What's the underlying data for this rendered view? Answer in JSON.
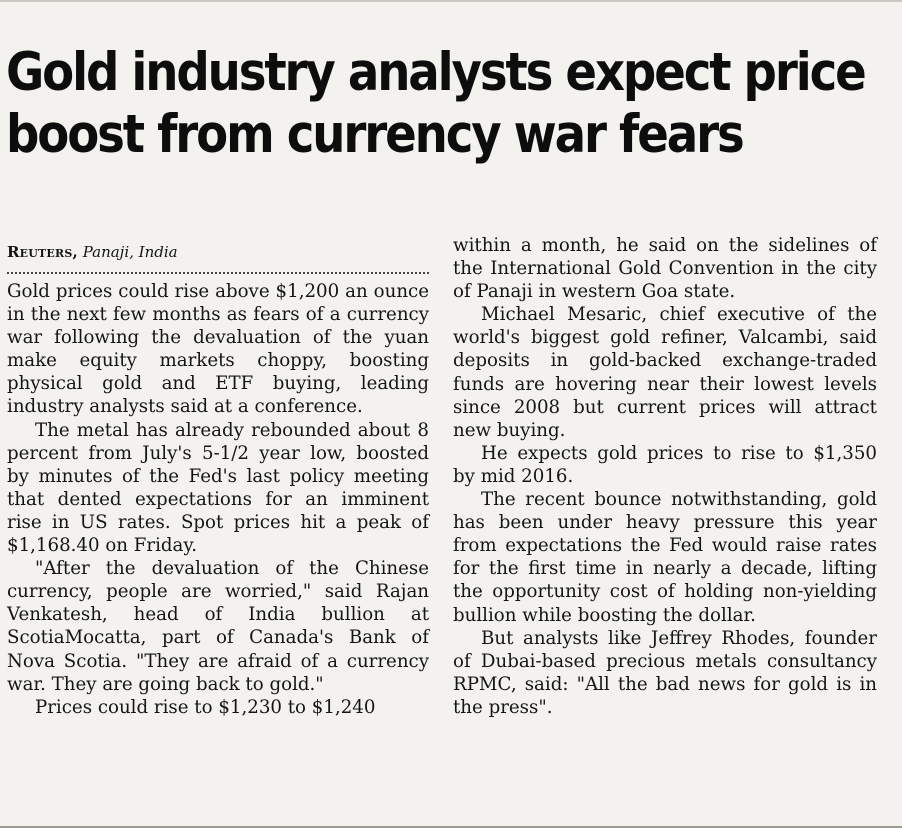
{
  "article": {
    "headline_line1": "Gold industry analysts expect price",
    "headline_line2": "boost from currency war fears",
    "agency": "Reuters,",
    "place": "Panaji, India",
    "paragraphs": [
      "Gold prices could rise above $1,200 an ounce in the next few months as fears of a currency war following the devaluation of the yuan make equity markets choppy, boosting physical gold and ETF buying, leading industry analysts said at a conference.",
      "The metal has already rebounded about 8 percent from July's 5-1/2 year low, boosted by minutes of the Fed's last policy meeting that dented expectations for an imminent rise in US rates. Spot prices hit a peak of $1,168.40 on Friday.",
      "\"After the devaluation of the Chinese currency, people are worried,\" said Rajan Venkatesh, head of India bullion at ScotiaMocatta, part of Canada's Bank of Nova Scotia. \"They are afraid of a currency war. They are going back to gold.\"",
      "Prices could rise to $1,230 to $1,240",
      "within a month, he said on the sidelines of the International Gold Convention in the city of Panaji in western Goa state.",
      "Michael Mesaric, chief executive of the world's biggest gold refiner, Valcambi, said deposits in gold-backed exchange-traded funds are hovering near their lowest levels since 2008 but current prices will attract new buying.",
      "He expects gold prices to rise to $1,350 by mid 2016.",
      "The recent bounce notwithstanding, gold has been under heavy pressure this year from expectations the Fed would raise rates for the first time in nearly a decade, lifting the opportunity cost of holding non-yielding bullion while boosting the dollar.",
      "But analysts like Jeffrey Rhodes, founder of Dubai-based precious metals consultancy RPMC, said: \"All the bad news for gold is in the press\"."
    ]
  }
}
